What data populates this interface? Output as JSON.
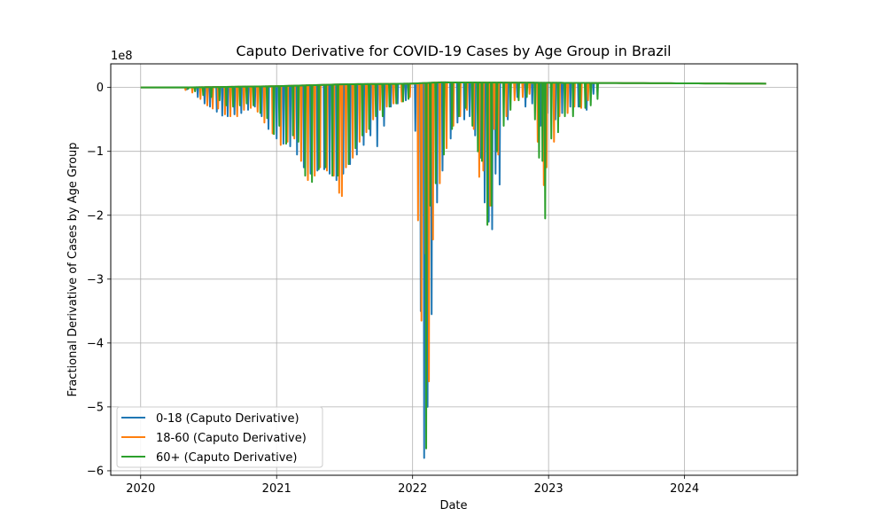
{
  "chart_data": {
    "type": "line",
    "title": "Caputo Derivative for COVID-19 Cases by Age Group in Brazil",
    "xlabel": "Date",
    "ylabel": "Fractional Derivative of Cases by Age Group",
    "y_scale_label": "1e8",
    "y_unit": 100000000,
    "xlim": [
      2019.78,
      2024.83
    ],
    "ylim": [
      -6.07,
      0.37
    ],
    "x_ticks": [
      2020,
      2021,
      2022,
      2023,
      2024
    ],
    "x_tick_labels": [
      "2020",
      "2021",
      "2022",
      "2023",
      "2024"
    ],
    "y_ticks": [
      0,
      -1,
      -2,
      -3,
      -4,
      -5,
      -6
    ],
    "y_tick_labels": [
      "0",
      "−1",
      "−2",
      "−3",
      "−4",
      "−5",
      "−6"
    ],
    "grid": true,
    "legend_position": "lower-left",
    "colors": {
      "s0": "#1f77b4",
      "s1": "#ff7f0e",
      "s2": "#2ca02c"
    },
    "baseline_rise": [
      [
        2020.0,
        0.0
      ],
      [
        2020.3,
        0.0
      ],
      [
        2021.0,
        0.02
      ],
      [
        2021.5,
        0.05
      ],
      [
        2022.0,
        0.06
      ],
      [
        2022.2,
        0.08
      ],
      [
        2024.6,
        0.06
      ]
    ],
    "series": [
      {
        "name": "0-18 (Caputo Derivative)",
        "color": "#1f77b4",
        "end_x": 2024.6,
        "spikes": [
          [
            2020.34,
            -0.03
          ],
          [
            2020.42,
            -0.15
          ],
          [
            2020.47,
            -0.25
          ],
          [
            2020.51,
            -0.3
          ],
          [
            2020.56,
            -0.38
          ],
          [
            2020.6,
            -0.44
          ],
          [
            2020.64,
            -0.45
          ],
          [
            2020.69,
            -0.42
          ],
          [
            2020.74,
            -0.4
          ],
          [
            2020.79,
            -0.35
          ],
          [
            2020.84,
            -0.3
          ],
          [
            2020.89,
            -0.45
          ],
          [
            2020.94,
            -0.65
          ],
          [
            2021.0,
            -0.8
          ],
          [
            2021.05,
            -0.88
          ],
          [
            2021.1,
            -0.92
          ],
          [
            2021.15,
            -1.05
          ],
          [
            2021.2,
            -1.25
          ],
          [
            2021.25,
            -1.35
          ],
          [
            2021.3,
            -1.3
          ],
          [
            2021.35,
            -1.28
          ],
          [
            2021.39,
            -1.35
          ],
          [
            2021.44,
            -1.45
          ],
          [
            2021.49,
            -1.35
          ],
          [
            2021.54,
            -1.2
          ],
          [
            2021.59,
            -1.05
          ],
          [
            2021.64,
            -0.9
          ],
          [
            2021.69,
            -0.75
          ],
          [
            2021.74,
            -0.92
          ],
          [
            2021.79,
            -0.6
          ],
          [
            2021.84,
            -0.3
          ],
          [
            2021.89,
            -0.25
          ],
          [
            2021.95,
            -0.2
          ],
          [
            2022.02,
            -0.68
          ],
          [
            2022.06,
            -3.5
          ],
          [
            2022.085,
            -5.8
          ],
          [
            2022.11,
            -5.0
          ],
          [
            2022.14,
            -3.55
          ],
          [
            2022.18,
            -1.8
          ],
          [
            2022.22,
            -1.3
          ],
          [
            2022.28,
            -0.8
          ],
          [
            2022.33,
            -0.55
          ],
          [
            2022.38,
            -0.5
          ],
          [
            2022.42,
            -0.45
          ],
          [
            2022.46,
            -0.75
          ],
          [
            2022.5,
            -1.1
          ],
          [
            2022.53,
            -1.8
          ],
          [
            2022.56,
            -2.1
          ],
          [
            2022.585,
            -2.22
          ],
          [
            2022.61,
            -1.35
          ],
          [
            2022.64,
            -1.52
          ],
          [
            2022.7,
            -0.5
          ],
          [
            2022.77,
            -0.15
          ],
          [
            2022.83,
            -0.3
          ],
          [
            2022.88,
            -0.25
          ],
          [
            2022.94,
            -0.6
          ],
          [
            2022.99,
            -0.4
          ],
          [
            2023.05,
            -0.5
          ],
          [
            2023.1,
            -0.4
          ],
          [
            2023.16,
            -0.3
          ],
          [
            2023.22,
            -0.3
          ],
          [
            2023.28,
            -0.35
          ],
          [
            2023.33,
            -0.1
          ]
        ]
      },
      {
        "name": "18-60 (Caputo Derivative)",
        "color": "#ff7f0e",
        "end_x": 2024.6,
        "spikes": [
          [
            2020.33,
            -0.04
          ],
          [
            2020.38,
            -0.08
          ],
          [
            2020.44,
            -0.18
          ],
          [
            2020.49,
            -0.28
          ],
          [
            2020.53,
            -0.33
          ],
          [
            2020.57,
            -0.33
          ],
          [
            2020.62,
            -0.42
          ],
          [
            2020.66,
            -0.45
          ],
          [
            2020.71,
            -0.45
          ],
          [
            2020.76,
            -0.35
          ],
          [
            2020.81,
            -0.32
          ],
          [
            2020.86,
            -0.38
          ],
          [
            2020.91,
            -0.55
          ],
          [
            2020.97,
            -0.72
          ],
          [
            2021.03,
            -0.9
          ],
          [
            2021.08,
            -0.85
          ],
          [
            2021.13,
            -0.8
          ],
          [
            2021.18,
            -1.15
          ],
          [
            2021.23,
            -1.45
          ],
          [
            2021.28,
            -1.38
          ],
          [
            2021.32,
            -1.25
          ],
          [
            2021.37,
            -1.3
          ],
          [
            2021.42,
            -1.38
          ],
          [
            2021.46,
            -1.65
          ],
          [
            2021.48,
            -1.7
          ],
          [
            2021.51,
            -1.25
          ],
          [
            2021.56,
            -1.1
          ],
          [
            2021.61,
            -0.85
          ],
          [
            2021.66,
            -0.7
          ],
          [
            2021.71,
            -0.5
          ],
          [
            2021.76,
            -0.35
          ],
          [
            2021.81,
            -0.3
          ],
          [
            2021.86,
            -0.25
          ],
          [
            2021.92,
            -0.22
          ],
          [
            2021.98,
            -0.15
          ],
          [
            2022.04,
            -2.08
          ],
          [
            2022.065,
            -3.65
          ],
          [
            2022.095,
            -2.6
          ],
          [
            2022.12,
            -4.6
          ],
          [
            2022.15,
            -2.38
          ],
          [
            2022.2,
            -1.5
          ],
          [
            2022.25,
            -0.95
          ],
          [
            2022.3,
            -0.6
          ],
          [
            2022.35,
            -0.45
          ],
          [
            2022.4,
            -0.35
          ],
          [
            2022.45,
            -0.65
          ],
          [
            2022.49,
            -1.4
          ],
          [
            2022.52,
            -1.3
          ],
          [
            2022.57,
            -1.85
          ],
          [
            2022.6,
            -0.65
          ],
          [
            2022.63,
            -1.05
          ],
          [
            2022.69,
            -0.45
          ],
          [
            2022.75,
            -0.2
          ],
          [
            2022.81,
            -0.15
          ],
          [
            2022.86,
            -0.1
          ],
          [
            2022.92,
            -0.85
          ],
          [
            2022.965,
            -1.53
          ],
          [
            2022.985,
            -1.25
          ],
          [
            2023.04,
            -0.85
          ],
          [
            2023.08,
            -0.45
          ],
          [
            2023.14,
            -0.4
          ],
          [
            2023.19,
            -0.3
          ],
          [
            2023.24,
            -0.32
          ],
          [
            2023.29,
            -0.2
          ]
        ]
      },
      {
        "name": "60+ (Caputo Derivative)",
        "color": "#2ca02c",
        "end_x": 2024.6,
        "spikes": [
          [
            2020.35,
            -0.02
          ],
          [
            2020.4,
            -0.06
          ],
          [
            2020.46,
            -0.12
          ],
          [
            2020.52,
            -0.15
          ],
          [
            2020.58,
            -0.2
          ],
          [
            2020.63,
            -0.28
          ],
          [
            2020.68,
            -0.3
          ],
          [
            2020.73,
            -0.28
          ],
          [
            2020.78,
            -0.25
          ],
          [
            2020.83,
            -0.28
          ],
          [
            2020.88,
            -0.4
          ],
          [
            2020.93,
            -0.48
          ],
          [
            2020.98,
            -0.73
          ],
          [
            2021.02,
            -0.6
          ],
          [
            2021.07,
            -0.88
          ],
          [
            2021.12,
            -0.75
          ],
          [
            2021.16,
            -0.85
          ],
          [
            2021.21,
            -1.38
          ],
          [
            2021.26,
            -1.48
          ],
          [
            2021.31,
            -1.28
          ],
          [
            2021.36,
            -1.25
          ],
          [
            2021.41,
            -1.38
          ],
          [
            2021.45,
            -1.38
          ],
          [
            2021.53,
            -1.2
          ],
          [
            2021.58,
            -0.95
          ],
          [
            2021.63,
            -0.75
          ],
          [
            2021.68,
            -0.65
          ],
          [
            2021.73,
            -0.45
          ],
          [
            2021.78,
            -0.45
          ],
          [
            2021.83,
            -0.3
          ],
          [
            2021.88,
            -0.25
          ],
          [
            2021.93,
            -0.22
          ],
          [
            2021.97,
            -0.18
          ],
          [
            2022.1,
            -5.65
          ],
          [
            2022.13,
            -1.85
          ],
          [
            2022.17,
            -1.5
          ],
          [
            2022.23,
            -1.05
          ],
          [
            2022.29,
            -0.65
          ],
          [
            2022.34,
            -0.45
          ],
          [
            2022.39,
            -0.32
          ],
          [
            2022.44,
            -0.6
          ],
          [
            2022.48,
            -1.0
          ],
          [
            2022.51,
            -1.15
          ],
          [
            2022.55,
            -2.15
          ],
          [
            2022.58,
            -1.85
          ],
          [
            2022.62,
            -1.0
          ],
          [
            2022.67,
            -0.6
          ],
          [
            2022.72,
            -0.35
          ],
          [
            2022.78,
            -0.2
          ],
          [
            2022.84,
            -0.15
          ],
          [
            2022.9,
            -0.5
          ],
          [
            2022.93,
            -1.1
          ],
          [
            2022.955,
            -1.15
          ],
          [
            2022.975,
            -2.05
          ],
          [
            2023.02,
            -0.8
          ],
          [
            2023.07,
            -0.7
          ],
          [
            2023.12,
            -0.45
          ],
          [
            2023.18,
            -0.45
          ],
          [
            2023.23,
            -0.3
          ],
          [
            2023.27,
            -0.32
          ],
          [
            2023.31,
            -0.28
          ],
          [
            2023.36,
            -0.18
          ]
        ]
      }
    ]
  }
}
